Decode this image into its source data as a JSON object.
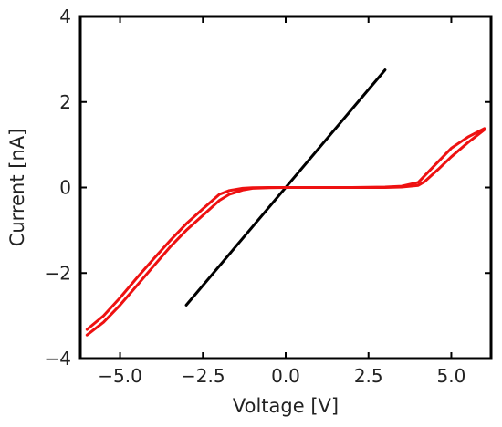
{
  "chart_data": {
    "type": "line",
    "title": "",
    "xlabel": "Voltage [V]",
    "ylabel": "Current [nA]",
    "xlim": [
      -6.2,
      6.2
    ],
    "ylim": [
      -4,
      4
    ],
    "xticks": [
      -5.0,
      -2.5,
      0.0,
      2.5,
      5.0
    ],
    "xtick_labels": [
      "−5.0",
      "−2.5",
      "0.0",
      "2.5",
      "5.0"
    ],
    "yticks": [
      -4,
      -2,
      0,
      2,
      4
    ],
    "ytick_labels": [
      "−4",
      "−2",
      "0",
      "2",
      "4"
    ],
    "grid": false,
    "legend": "none",
    "series": [
      {
        "color": "#000000",
        "x": [
          -3.0,
          3.0
        ],
        "y": [
          -2.75,
          2.75
        ]
      },
      {
        "color": "#ee1111",
        "x": [
          6.0,
          5.5,
          5.0,
          4.6,
          4.2,
          4.0,
          3.5,
          3.0,
          2.0,
          1.0,
          0.0,
          -0.5,
          -1.0,
          -1.3,
          -1.7,
          -2.0,
          -2.5,
          -3.0,
          -3.5,
          -4.0,
          -4.5,
          -5.0,
          -5.5,
          -6.0
        ],
        "y": [
          1.35,
          1.05,
          0.72,
          0.42,
          0.14,
          0.05,
          0.01,
          0.0,
          0.0,
          0.0,
          0.0,
          -0.005,
          -0.02,
          -0.06,
          -0.16,
          -0.3,
          -0.65,
          -1.0,
          -1.4,
          -1.85,
          -2.3,
          -2.75,
          -3.15,
          -3.45
        ],
        "y_return": [
          1.38,
          1.18,
          0.92,
          0.6,
          0.28,
          0.12,
          0.03,
          0.01,
          0.0,
          0.0,
          0.0,
          0.0,
          -0.005,
          -0.02,
          -0.07,
          -0.16,
          -0.5,
          -0.85,
          -1.25,
          -1.68,
          -2.12,
          -2.58,
          -3.0,
          -3.32
        ]
      }
    ]
  }
}
